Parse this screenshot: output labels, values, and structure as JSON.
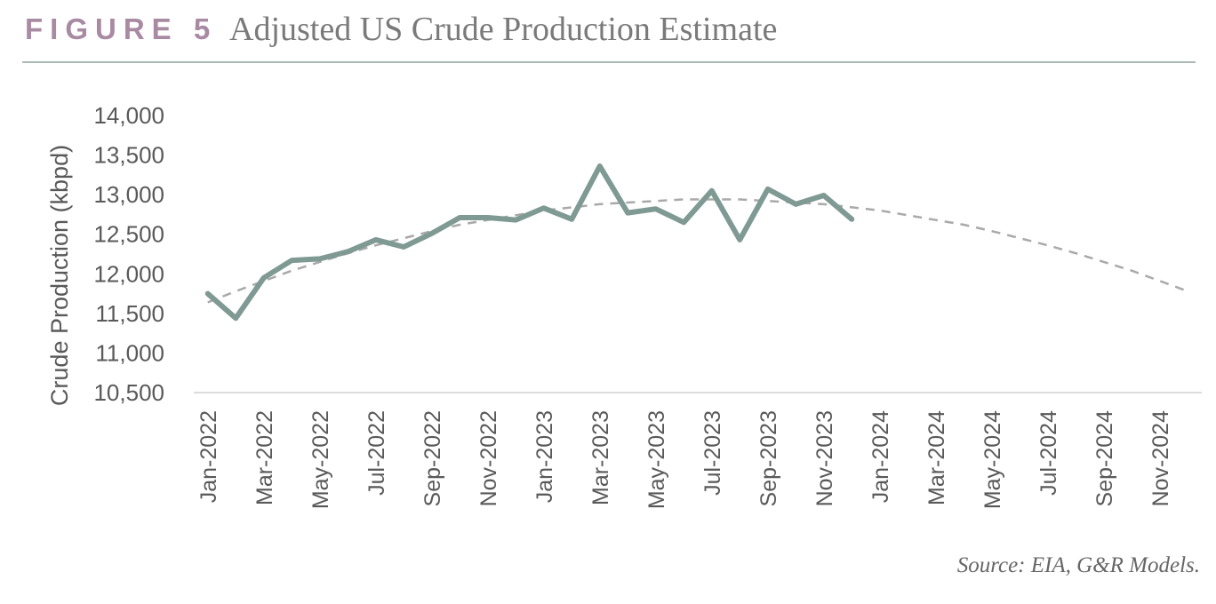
{
  "chart_data": {
    "type": "line",
    "figure_label": "FIGURE 5",
    "title": "Adjusted US Crude Production Estimate",
    "ylabel": "Crude Production (kbpd)",
    "source": "Source: EIA, G&R Models.",
    "categories": [
      "Jan-2022",
      null,
      "Mar-2022",
      null,
      "May-2022",
      null,
      "Jul-2022",
      null,
      "Sep-2022",
      null,
      "Nov-2022",
      null,
      "Jan-2023",
      null,
      "Mar-2023",
      null,
      "May-2023",
      null,
      "Jul-2023",
      null,
      "Sep-2023",
      null,
      "Nov-2023",
      null,
      "Jan-2024",
      null,
      "Mar-2024",
      null,
      "May-2024",
      null,
      "Jul-2024",
      null,
      "Sep-2024",
      null,
      "Nov-2024",
      null
    ],
    "series": [
      {
        "color": "#7f9a93",
        "style": "solid",
        "values": [
          11750,
          11440,
          11950,
          12170,
          12190,
          12280,
          12430,
          12340,
          12510,
          12710,
          12710,
          12680,
          12830,
          12690,
          13360,
          12770,
          12820,
          12650,
          13050,
          12430,
          13070,
          12880,
          12990,
          12690,
          null,
          null,
          null,
          null,
          null,
          null,
          null,
          null,
          null,
          null,
          null,
          null
        ]
      },
      {
        "color": "#a9a9a9",
        "style": "dashed",
        "values": [
          11640,
          11780,
          11910,
          12040,
          12150,
          12260,
          12360,
          12450,
          12540,
          12620,
          12680,
          12740,
          12800,
          12840,
          12880,
          12900,
          12920,
          12940,
          12940,
          12940,
          12920,
          12900,
          12880,
          12840,
          12800,
          12740,
          12680,
          12620,
          12540,
          12450,
          12360,
          12260,
          12150,
          12040,
          11910,
          11780
        ]
      }
    ],
    "ylim": [
      10500,
      14000
    ],
    "yticks": [
      {
        "value": 10500,
        "label": "10,500"
      },
      {
        "value": 11000,
        "label": "11,000"
      },
      {
        "value": 11500,
        "label": "11,500"
      },
      {
        "value": 12000,
        "label": "12,000"
      },
      {
        "value": 12500,
        "label": "12,500"
      },
      {
        "value": 13000,
        "label": "13,000"
      },
      {
        "value": 13500,
        "label": "13,500"
      },
      {
        "value": 14000,
        "label": "14,000"
      }
    ],
    "grid": false
  }
}
